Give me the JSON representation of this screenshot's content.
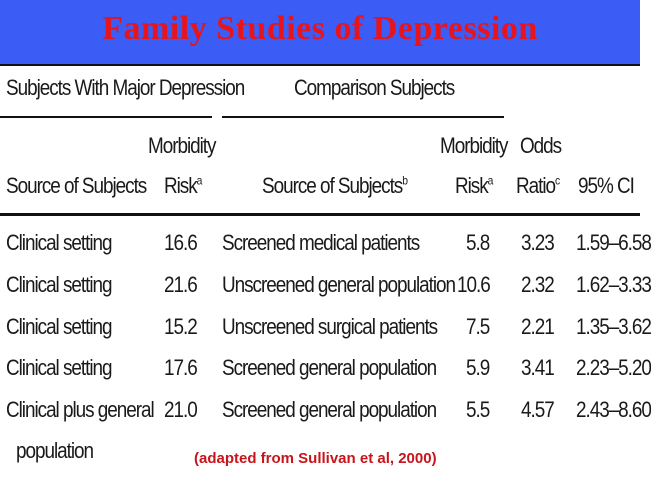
{
  "title": "Family Studies of Depression",
  "groups": {
    "major": "Subjects With Major Depression",
    "comparison": "Comparison Subjects"
  },
  "columns": {
    "source_major": "Source of Subjects",
    "risk_major_1": "Morbidity",
    "risk_major_2": "Risk",
    "risk_major_sup": "a",
    "source_comp": "Source of Subjects",
    "source_comp_sup": "b",
    "risk_comp_1": "Morbidity",
    "risk_comp_2": "Risk",
    "risk_comp_sup": "a",
    "odds_1": "Odds",
    "odds_2": "Ratio",
    "odds_sup": "c",
    "ci": "95% CI"
  },
  "rows": [
    {
      "source": "Clinical setting",
      "risk": "16.6",
      "comp_source": "Screened medical patients",
      "comp_risk": "5.8",
      "odds": "3.23",
      "ci": "1.59–6.58"
    },
    {
      "source": "Clinical setting",
      "risk": "21.6",
      "comp_source": "Unscreened general population",
      "comp_risk": "10.6",
      "odds": "2.32",
      "ci": "1.62–3.33"
    },
    {
      "source": "Clinical setting",
      "risk": "15.2",
      "comp_source": "Unscreened surgical patients",
      "comp_risk": "7.5",
      "odds": "2.21",
      "ci": "1.35–3.62"
    },
    {
      "source": "Clinical setting",
      "risk": "17.6",
      "comp_source": "Screened general population",
      "comp_risk": "5.9",
      "odds": "3.41",
      "ci": "2.23–5.20"
    },
    {
      "source": "Clinical plus general",
      "source_line2": "population",
      "risk": "21.0",
      "comp_source": "Screened general population",
      "comp_risk": "5.5",
      "odds": "4.57",
      "ci": "2.43–8.60"
    }
  ],
  "credit": "(adapted from Sullivan et al, 2000)",
  "colors": {
    "title_bar": "#3b5df5",
    "title_text": "#e8141b",
    "credit_text": "#c8141b"
  }
}
